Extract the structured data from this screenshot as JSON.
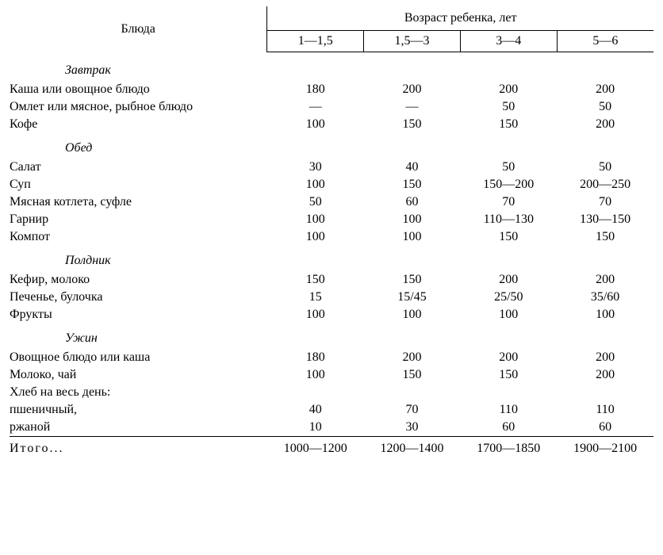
{
  "header": {
    "dishes": "Блюда",
    "super": "Возраст ребенка, лет",
    "ages": [
      "1—1,5",
      "1,5—3",
      "3—4",
      "5—6"
    ]
  },
  "sections": [
    {
      "title": "Завтрак",
      "rows": [
        {
          "dish": "Каша или овощное блюдо",
          "vals": [
            "180",
            "200",
            "200",
            "200"
          ]
        },
        {
          "dish": "Омлет или мясное, рыбное блюдо",
          "vals": [
            "—",
            "—",
            "50",
            "50"
          ]
        },
        {
          "dish": "Кофе",
          "vals": [
            "100",
            "150",
            "150",
            "200"
          ]
        }
      ]
    },
    {
      "title": "Обед",
      "rows": [
        {
          "dish": "Салат",
          "vals": [
            "30",
            "40",
            "50",
            "50"
          ]
        },
        {
          "dish": "Суп",
          "vals": [
            "100",
            "150",
            "150—200",
            "200—250"
          ]
        },
        {
          "dish": "Мясная котлета, суфле",
          "vals": [
            "50",
            "60",
            "70",
            "70"
          ]
        },
        {
          "dish": "Гарнир",
          "vals": [
            "100",
            "100",
            "110—130",
            "130—150"
          ]
        },
        {
          "dish": "Компот",
          "vals": [
            "100",
            "100",
            "150",
            "150"
          ]
        }
      ]
    },
    {
      "title": "Полдник",
      "rows": [
        {
          "dish": "Кефир, молоко",
          "vals": [
            "150",
            "150",
            "200",
            "200"
          ]
        },
        {
          "dish": "Печенье, булочка",
          "vals": [
            "15",
            "15/45",
            "25/50",
            "35/60"
          ]
        },
        {
          "dish": "Фрукты",
          "vals": [
            "100",
            "100",
            "100",
            "100"
          ]
        }
      ]
    },
    {
      "title": "Ужин",
      "rows": [
        {
          "dish": "Овощное блюдо или каша",
          "vals": [
            "180",
            "200",
            "200",
            "200"
          ]
        },
        {
          "dish": "Молоко, чай",
          "vals": [
            "100",
            "150",
            "150",
            "200"
          ]
        },
        {
          "dish": "Хлеб на весь день:",
          "vals": [
            "",
            "",
            "",
            ""
          ]
        },
        {
          "dish": "пшеничный,",
          "vals": [
            "40",
            "70",
            "110",
            "110"
          ]
        },
        {
          "dish": "ржаной",
          "vals": [
            "10",
            "30",
            "60",
            "60"
          ]
        }
      ]
    }
  ],
  "totals": {
    "label": "Итого...",
    "vals": [
      "1000—1200",
      "1200—1400",
      "1700—1850",
      "1900—2100"
    ]
  }
}
